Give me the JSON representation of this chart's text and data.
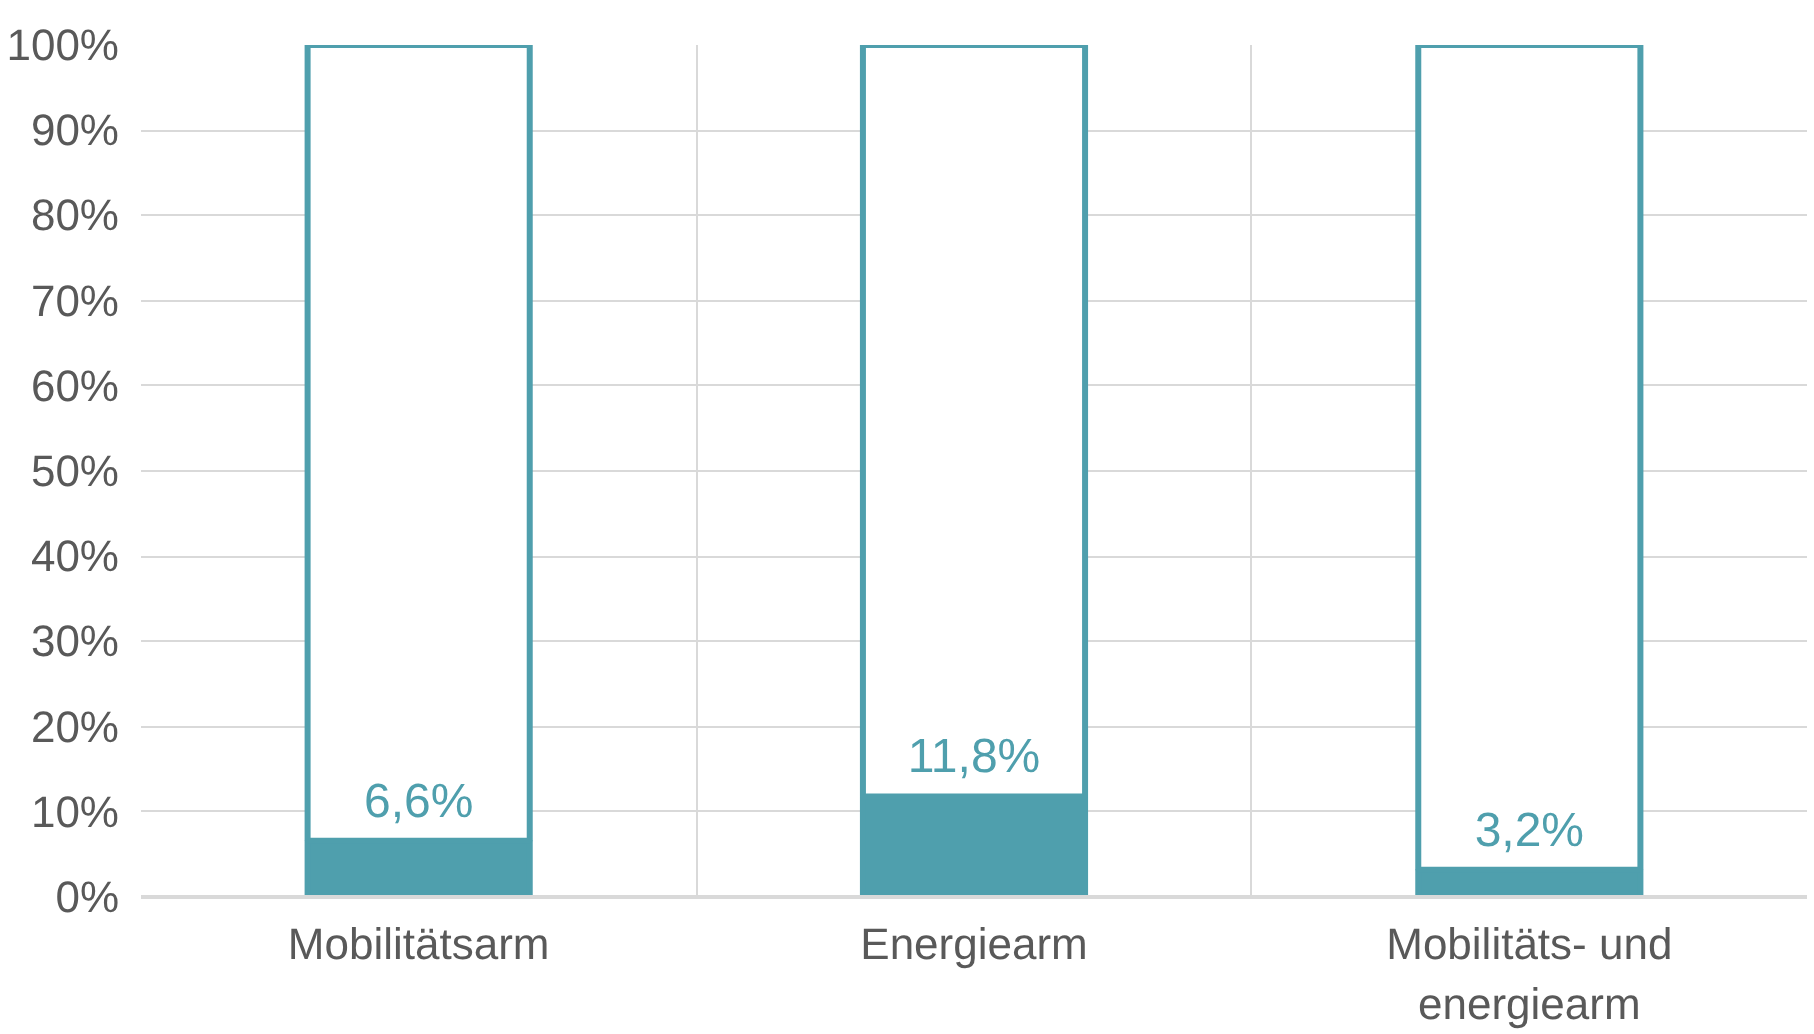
{
  "chart_data": {
    "type": "bar",
    "stacked": true,
    "categories": [
      "Mobilitätsarm",
      "Energiearm",
      "Mobilitäts- und energiearm"
    ],
    "series": [
      {
        "color": "#4f9fad",
        "values": [
          6.6,
          11.8,
          3.2
        ],
        "value_labels": [
          "6,6%",
          "11,8%",
          "3,2%"
        ]
      },
      {
        "color": "#ffffff",
        "values": [
          93.4,
          88.2,
          96.8
        ]
      }
    ],
    "ylim": [
      0,
      100
    ],
    "yticks": [
      {
        "value": 0,
        "label": "0%"
      },
      {
        "value": 10,
        "label": "10%"
      },
      {
        "value": 20,
        "label": "20%"
      },
      {
        "value": 30,
        "label": "30%"
      },
      {
        "value": 40,
        "label": "40%"
      },
      {
        "value": 50,
        "label": "50%"
      },
      {
        "value": 60,
        "label": "60%"
      },
      {
        "value": 70,
        "label": "70%"
      },
      {
        "value": 80,
        "label": "80%"
      },
      {
        "value": 90,
        "label": "90%"
      },
      {
        "value": 100,
        "label": "100%"
      }
    ],
    "grid": true
  }
}
